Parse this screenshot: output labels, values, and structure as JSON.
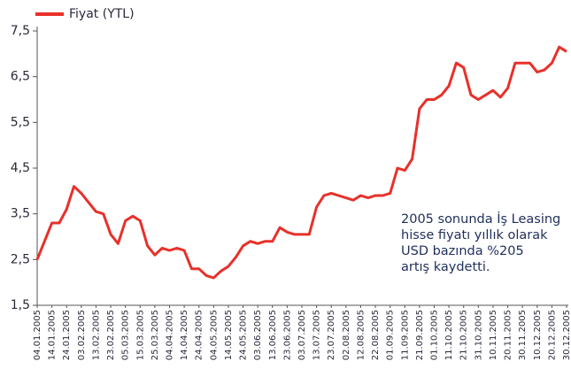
{
  "chart_data": {
    "type": "line",
    "categories": [
      "04.01.2005",
      null,
      "14.01.2005",
      null,
      "24.01.2005",
      null,
      "03.02.2005",
      null,
      "13.02.2005",
      null,
      "23.02.2005",
      null,
      "05.03.2005",
      null,
      "15.03.2005",
      null,
      "25.03.2005",
      null,
      "04.04.2005",
      null,
      "14.04.2005",
      null,
      "24.04.2005",
      null,
      "04.05.2005",
      null,
      "14.05.2005",
      null,
      "24.05.2005",
      null,
      "03.06.2005",
      null,
      "13.06.2005",
      null,
      "23.06.2005",
      null,
      "03.07.2005",
      null,
      "13.07.2005",
      null,
      "23.07.2005",
      null,
      "02.08.2005",
      null,
      "12.08.2005",
      null,
      "22.08.2005",
      null,
      "01.09.2005",
      null,
      "11.09.2005",
      null,
      "21.09.2005",
      null,
      "01.10.2005",
      null,
      "11.10.2005",
      null,
      "21.10.2005",
      null,
      "31.10.2005",
      null,
      "10.11.2005",
      null,
      "20.11.2005",
      null,
      "30.11.2005",
      null,
      "10.12.2005",
      null,
      "20.12.2005",
      null,
      "30.12.2005"
    ],
    "series": [
      {
        "name": "Fiyat (YTL)",
        "color": "#e8302a",
        "values": [
          2.5,
          2.9,
          3.3,
          3.3,
          3.6,
          4.1,
          3.95,
          3.75,
          3.55,
          3.5,
          3.05,
          2.85,
          3.35,
          3.45,
          3.35,
          2.8,
          2.6,
          2.75,
          2.7,
          2.75,
          2.7,
          2.3,
          2.3,
          2.15,
          2.1,
          2.25,
          2.35,
          2.55,
          2.8,
          2.9,
          2.85,
          2.9,
          2.9,
          3.2,
          3.1,
          3.05,
          3.05,
          3.05,
          3.65,
          3.9,
          3.95,
          3.9,
          3.85,
          3.8,
          3.9,
          3.85,
          3.9,
          3.9,
          3.95,
          4.5,
          4.45,
          4.7,
          5.8,
          6.0,
          6.0,
          6.1,
          6.3,
          6.8,
          6.7,
          6.1,
          6.0,
          6.1,
          6.2,
          6.05,
          6.25,
          6.8,
          6.8,
          6.8,
          6.6,
          6.65,
          6.8,
          7.15,
          7.05
        ]
      }
    ],
    "ylim": [
      1.5,
      7.5
    ],
    "yticks": [
      {
        "value": 1.5,
        "label": "1,5"
      },
      {
        "value": 2.5,
        "label": "2,5"
      },
      {
        "value": 3.5,
        "label": "3,5"
      },
      {
        "value": 4.5,
        "label": "4,5"
      },
      {
        "value": 5.5,
        "label": "5,5"
      },
      {
        "value": 6.5,
        "label": "6,5"
      },
      {
        "value": 7.5,
        "label": "7,5"
      }
    ],
    "annotation": [
      "2005 sonunda İş Leasing",
      "hisse fiyatı yıllık olarak",
      "USD bazında %205",
      "artış kaydetti."
    ],
    "legend": "top-left",
    "grid": false
  }
}
